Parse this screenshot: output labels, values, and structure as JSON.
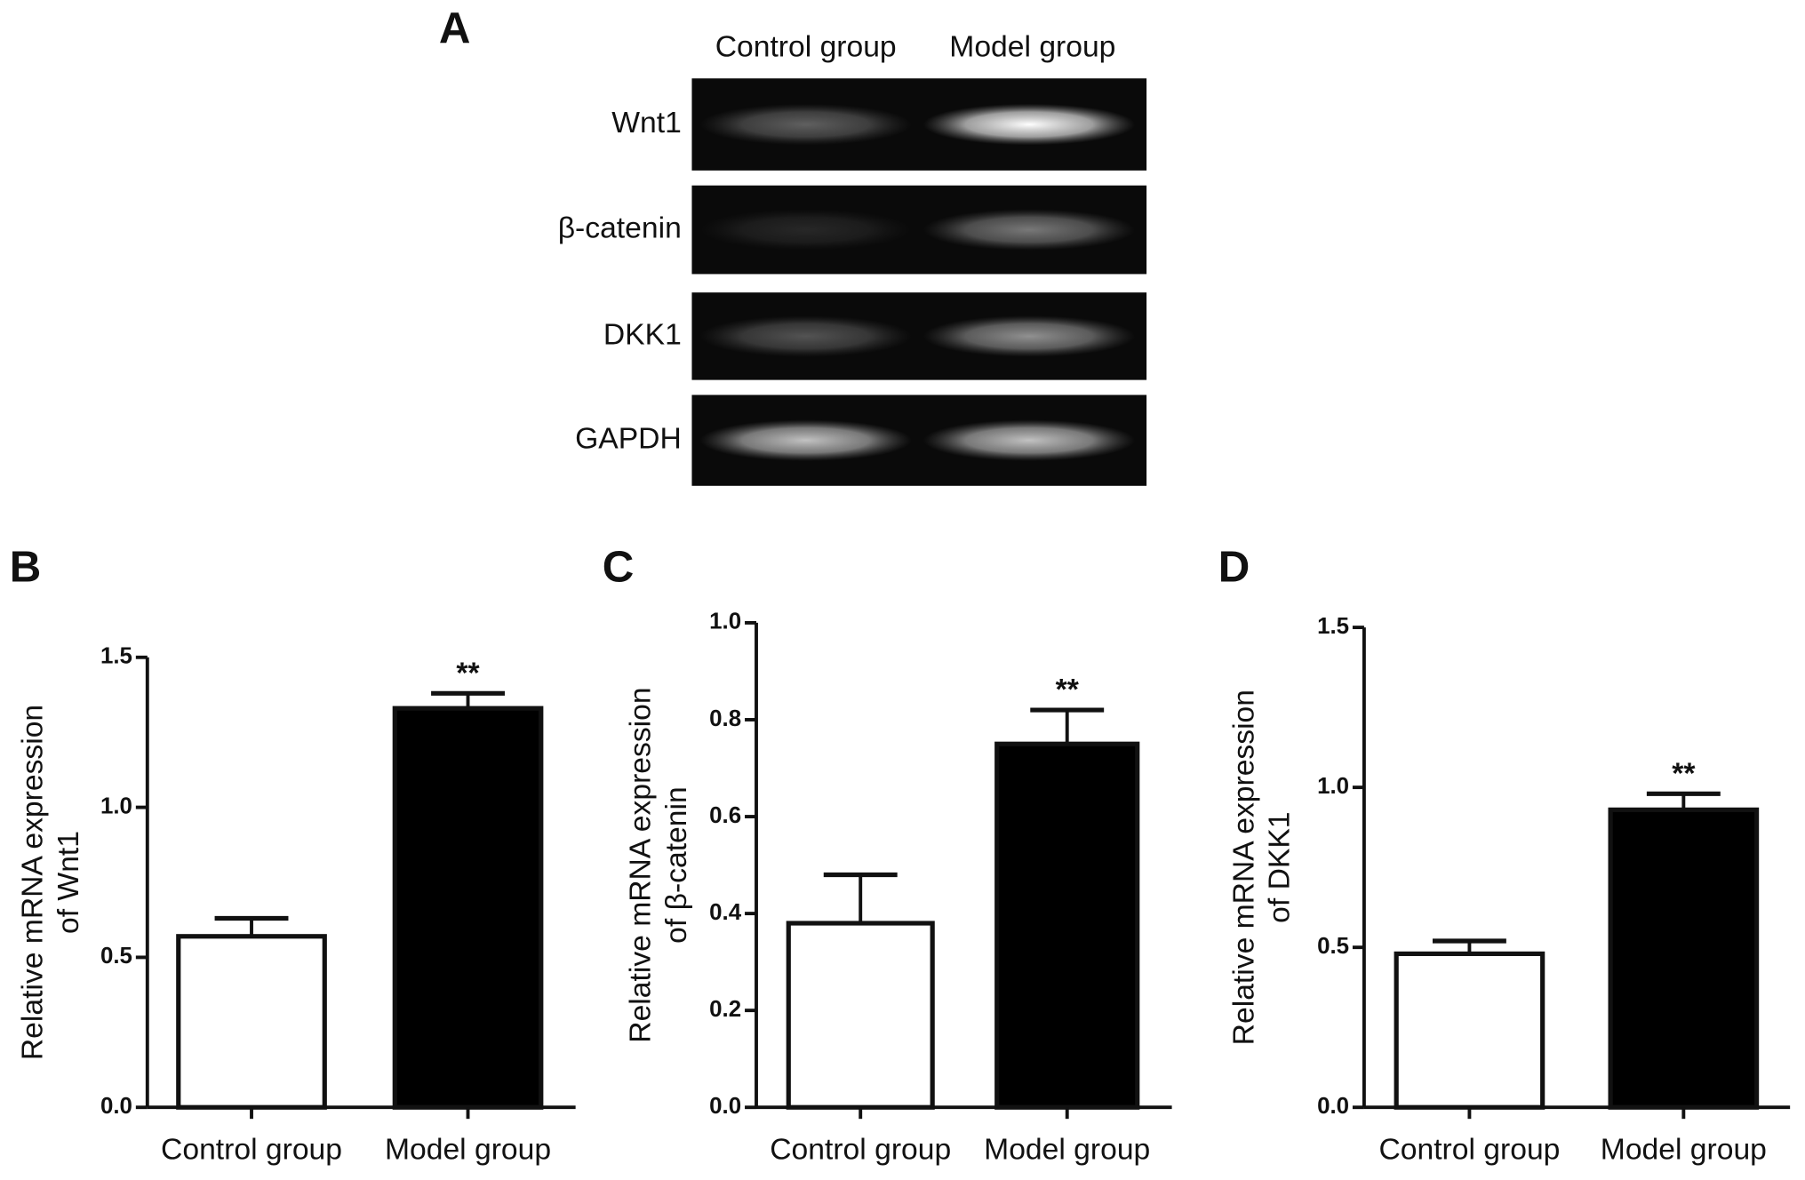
{
  "gel": {
    "panel": "A",
    "columns": [
      "Control group",
      "Model group"
    ],
    "rows": [
      "Wnt1",
      "β-catenin",
      "DKK1",
      "GAPDH"
    ]
  },
  "chart_data": [
    {
      "type": "bar",
      "panel": "B",
      "y_label": [
        "Relative mRNA expression",
        "of Wnt1"
      ],
      "categories": [
        "Control group",
        "Model group"
      ],
      "values": [
        0.57,
        1.33
      ],
      "errors": [
        0.06,
        0.05
      ],
      "colors": [
        "#ffffff",
        "#000000"
      ],
      "significance": [
        null,
        "**"
      ],
      "ylim": [
        0,
        1.5
      ],
      "yticks": [
        {
          "value": 0,
          "label": "0.0"
        },
        0.5,
        {
          "value": 1,
          "label": "1.0"
        },
        1.5
      ]
    },
    {
      "type": "bar",
      "panel": "C",
      "y_label": [
        "Relative mRNA expression",
        "of β-catenin"
      ],
      "categories": [
        "Control group",
        "Model group"
      ],
      "values": [
        0.38,
        0.75
      ],
      "errors": [
        0.1,
        0.07
      ],
      "colors": [
        "#ffffff",
        "#000000"
      ],
      "significance": [
        null,
        "**"
      ],
      "ylim": [
        0,
        1
      ],
      "yticks": [
        {
          "value": 0,
          "label": "0.0"
        },
        0.2,
        0.4,
        0.6,
        0.8,
        {
          "value": 1,
          "label": "1.0"
        }
      ]
    },
    {
      "type": "bar",
      "panel": "D",
      "y_label": [
        "Relative mRNA expression",
        "of DKK1"
      ],
      "categories": [
        "Control group",
        "Model group"
      ],
      "values": [
        0.48,
        0.93
      ],
      "errors": [
        0.04,
        0.05
      ],
      "colors": [
        "#ffffff",
        "#000000"
      ],
      "significance": [
        null,
        "**"
      ],
      "ylim": [
        0,
        1.5
      ],
      "yticks": [
        {
          "value": 0,
          "label": "0.0"
        },
        0.5,
        {
          "value": 1,
          "label": "1.0"
        },
        1.5
      ]
    }
  ]
}
